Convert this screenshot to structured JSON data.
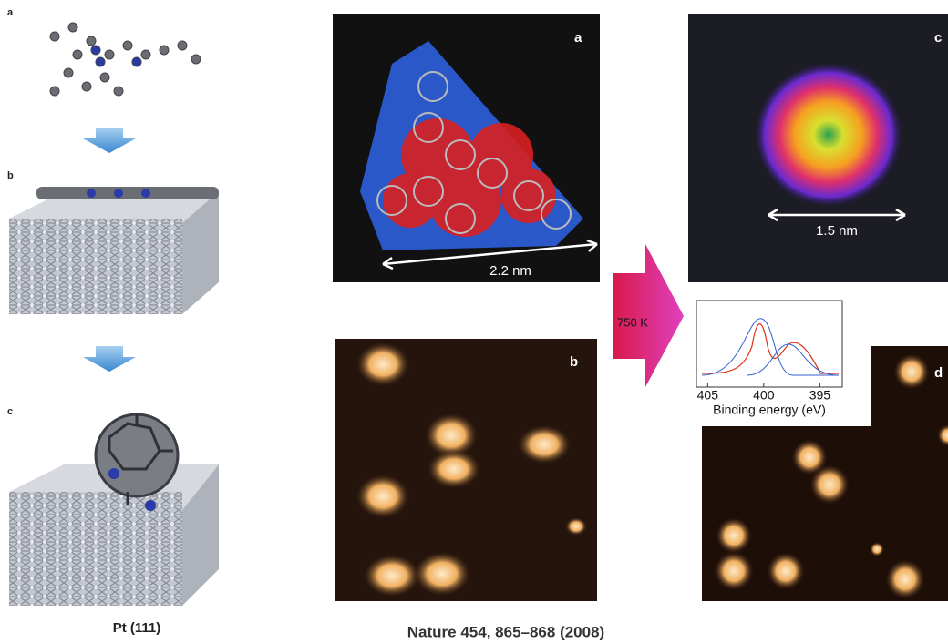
{
  "left": {
    "panels": [
      "a",
      "b",
      "c"
    ],
    "substrate": "Pt (111)"
  },
  "stm": {
    "panels": [
      "a",
      "b",
      "c",
      "d"
    ],
    "scale_a": "2.2 nm",
    "scale_c": "1.5 nm",
    "anneal": "750 K"
  },
  "xps": {
    "xlabel": "Binding energy (eV)",
    "xlim": [
      406,
      393
    ],
    "xticks": [
      405,
      400,
      395
    ]
  },
  "citation": "Nature 454, 865–868 (2008)"
}
